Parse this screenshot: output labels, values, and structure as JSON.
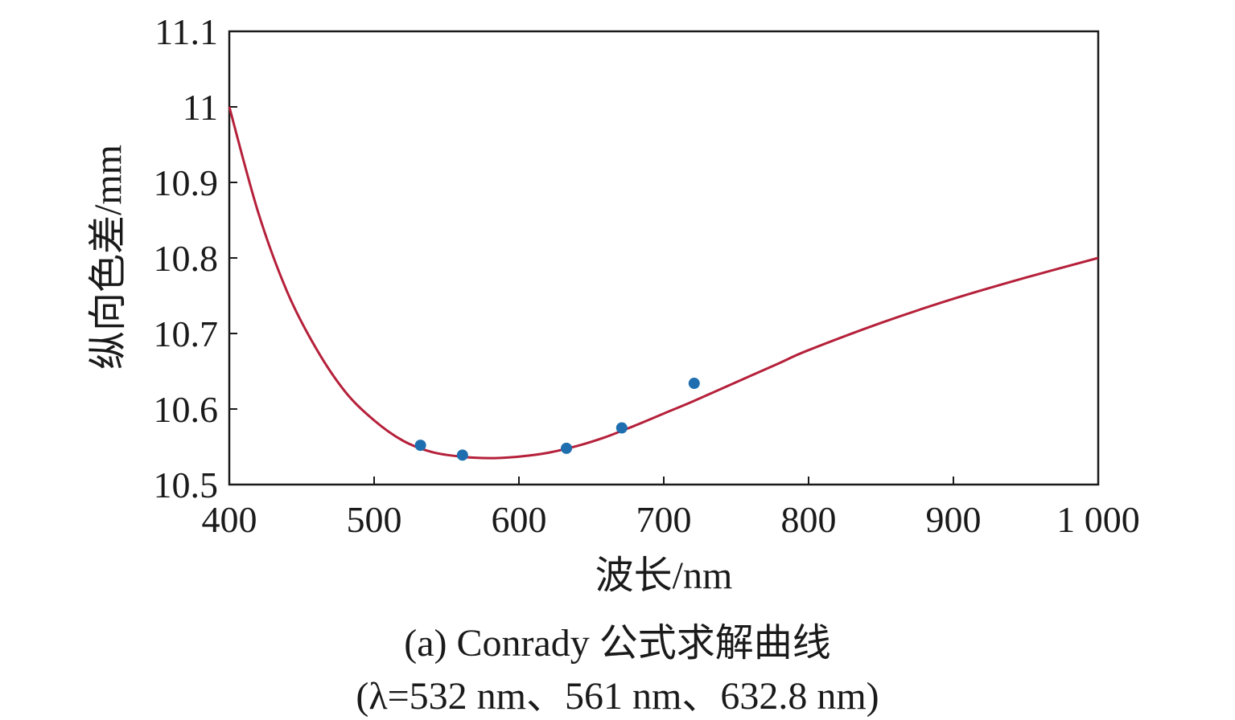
{
  "chart_data": {
    "type": "scatter",
    "xlabel": "波长/nm",
    "ylabel": "纵向色差/mm",
    "xlim": [
      400,
      1000
    ],
    "ylim": [
      10.5,
      11.1
    ],
    "x_ticks": [
      400,
      500,
      600,
      700,
      800,
      900,
      1000
    ],
    "x_tick_labels": [
      "400",
      "500",
      "600",
      "700",
      "800",
      "900",
      "1 000"
    ],
    "y_ticks": [
      10.5,
      10.6,
      10.7,
      10.8,
      10.9,
      11,
      11.1
    ],
    "y_tick_labels": [
      "10.5",
      "10.6",
      "10.7",
      "10.8",
      "10.9",
      "11",
      "11.1"
    ],
    "grid": false,
    "series": [
      {
        "kind": "line",
        "color": "#b5203a",
        "x": [
          400,
          420,
          440,
          460,
          480,
          500,
          520,
          540,
          560,
          580,
          600,
          620,
          640,
          660,
          680,
          700,
          720,
          740,
          760,
          780,
          800,
          850,
          900,
          950,
          1000
        ],
        "y": [
          11.0,
          10.86,
          10.755,
          10.68,
          10.623,
          10.585,
          10.558,
          10.543,
          10.537,
          10.535,
          10.537,
          10.542,
          10.551,
          10.563,
          10.578,
          10.594,
          10.61,
          10.627,
          10.644,
          10.661,
          10.678,
          10.714,
          10.746,
          10.774,
          10.8
        ]
      },
      {
        "kind": "scatter",
        "color": "#1f6fb0",
        "x": [
          532,
          561,
          632.8,
          671,
          721
        ],
        "y": [
          10.552,
          10.539,
          10.548,
          10.575,
          10.634
        ]
      }
    ]
  },
  "caption": {
    "title": "(a) Conrady 公式求解曲线",
    "subtitle": "(λ=532 nm、561 nm、632.8 nm)"
  }
}
